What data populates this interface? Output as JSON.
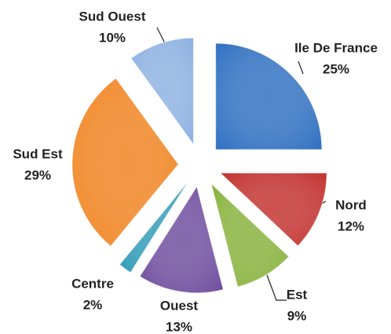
{
  "chart_data": {
    "type": "pie",
    "categories": [
      "Ile De France",
      "Nord",
      "Est",
      "Ouest",
      "Centre",
      "Sud Est",
      "Sud Ouest"
    ],
    "values": [
      25,
      12,
      9,
      13,
      2,
      29,
      10
    ],
    "value_labels": [
      "25%",
      "12%",
      "9%",
      "13%",
      "2%",
      "29%",
      "10%"
    ],
    "colors": [
      "#2f6fc1",
      "#c1302d",
      "#86b13a",
      "#6d4b9d",
      "#2e9ab6",
      "#f0831f",
      "#8cb0e1"
    ]
  }
}
